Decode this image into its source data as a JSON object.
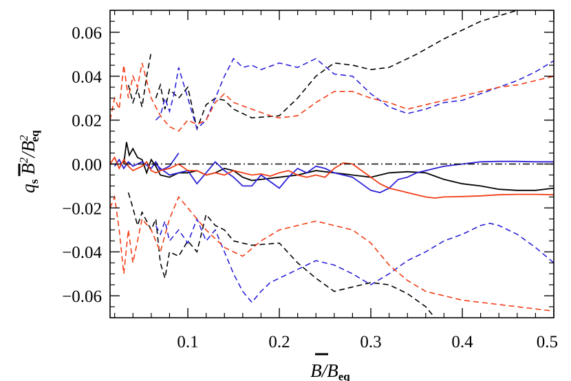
{
  "chart_data": {
    "type": "line",
    "xlabel": "B̄/B_eq",
    "ylabel": "q_s B̄²/B²_eq",
    "xlim": [
      0.015,
      0.5
    ],
    "ylim": [
      -0.07,
      0.07
    ],
    "x_ticks": [
      0.1,
      0.2,
      0.3,
      0.4,
      0.5
    ],
    "x_tick_labels": [
      "0.1",
      "0.2",
      "0.3",
      "0.4",
      "0.5"
    ],
    "y_ticks": [
      -0.06,
      -0.04,
      -0.02,
      0.0,
      0.02,
      0.04,
      0.06
    ],
    "y_tick_labels": [
      "−0.06",
      "−0.04",
      "−0.02",
      "0.00",
      "0.02",
      "0.04",
      "0.06"
    ],
    "grid": false,
    "reference_line": {
      "y": 0.0,
      "style": "dash-dot",
      "color": "#000000"
    },
    "series": [
      {
        "color": "#000000",
        "dash": false,
        "x": [
          0.03,
          0.033,
          0.036,
          0.04,
          0.045,
          0.05,
          0.055,
          0.06,
          0.065,
          0.07,
          0.08,
          0.09,
          0.1,
          0.11,
          0.12,
          0.13,
          0.14,
          0.15,
          0.16,
          0.17,
          0.18,
          0.2,
          0.22,
          0.24,
          0.26,
          0.28,
          0.3,
          0.32,
          0.34,
          0.36,
          0.38,
          0.4,
          0.42,
          0.44,
          0.46,
          0.48,
          0.5
        ],
        "y": [
          0.0,
          0.01,
          0.004,
          0.007,
          0.003,
          0.002,
          -0.004,
          0.002,
          -0.001,
          -0.005,
          -0.006,
          -0.004,
          -0.004,
          -0.003,
          -0.005,
          -0.004,
          -0.002,
          -0.003,
          -0.006,
          -0.0075,
          -0.007,
          -0.006,
          -0.005,
          -0.003,
          -0.004,
          -0.005,
          -0.006,
          -0.004,
          -0.0035,
          -0.004,
          -0.007,
          -0.009,
          -0.01,
          -0.0115,
          -0.012,
          -0.012,
          -0.011
        ]
      },
      {
        "color": "#2a1fd6",
        "dash": false,
        "x": [
          0.02,
          0.025,
          0.03,
          0.035,
          0.04,
          0.05,
          0.06,
          0.065,
          0.07,
          0.075,
          0.08,
          0.085,
          0.09
        ],
        "y": [
          -0.001,
          0.002,
          -0.002,
          0.001,
          -0.001,
          0.001,
          -0.002,
          0.001,
          -0.003,
          -0.002,
          -0.001,
          0.002,
          0.005
        ]
      },
      {
        "color": "#2a1fd6",
        "dash": false,
        "x": [
          0.065,
          0.07,
          0.08,
          0.09,
          0.1,
          0.11,
          0.12,
          0.13,
          0.14,
          0.15,
          0.16,
          0.17,
          0.18,
          0.19,
          0.2,
          0.21,
          0.22,
          0.23,
          0.24,
          0.25,
          0.26,
          0.27,
          0.28,
          0.29,
          0.3,
          0.31,
          0.32,
          0.33,
          0.34,
          0.35,
          0.36,
          0.37,
          0.38,
          0.39,
          0.4,
          0.41,
          0.42,
          0.44,
          0.46,
          0.48,
          0.5
        ],
        "y": [
          0.0,
          -0.002,
          -0.005,
          -0.004,
          -0.003,
          -0.009,
          -0.004,
          0.001,
          -0.003,
          -0.006,
          -0.01,
          -0.01,
          -0.005,
          -0.008,
          -0.011,
          -0.006,
          -0.002,
          -0.004,
          -0.001,
          -0.002,
          -0.004,
          -0.005,
          -0.006,
          -0.009,
          -0.012,
          -0.013,
          -0.011,
          -0.007,
          -0.006,
          -0.004,
          -0.003,
          -0.002,
          -0.001,
          -0.0005,
          0.0,
          0.0005,
          0.001,
          0.0012,
          0.0012,
          0.001,
          0.001
        ]
      },
      {
        "color": "#f23c14",
        "dash": false,
        "x": [
          0.015,
          0.02,
          0.025,
          0.03,
          0.035,
          0.04,
          0.05,
          0.055,
          0.06,
          0.065,
          0.07,
          0.08,
          0.09,
          0.1,
          0.11,
          0.12,
          0.13,
          0.14,
          0.15,
          0.16,
          0.17,
          0.18,
          0.19,
          0.2,
          0.21,
          0.22,
          0.23,
          0.24,
          0.25,
          0.26,
          0.27,
          0.28,
          0.29,
          0.3,
          0.31,
          0.32,
          0.33,
          0.34,
          0.35,
          0.36,
          0.37,
          0.38,
          0.4,
          0.42,
          0.44,
          0.46,
          0.48,
          0.5
        ],
        "y": [
          0.0,
          0.003,
          -0.002,
          0.002,
          -0.001,
          -0.003,
          -0.001,
          0.001,
          -0.003,
          -0.004,
          -0.003,
          -0.002,
          0.0,
          -0.003,
          -0.003,
          -0.005,
          -0.004,
          -0.005,
          -0.003,
          -0.004,
          -0.005,
          -0.0045,
          -0.0055,
          -0.004,
          -0.003,
          -0.005,
          -0.006,
          -0.005,
          -0.006,
          -0.002,
          0.0005,
          0.0,
          -0.003,
          -0.006,
          -0.009,
          -0.011,
          -0.012,
          -0.013,
          -0.014,
          -0.015,
          -0.0155,
          -0.015,
          -0.0148,
          -0.0145,
          -0.014,
          -0.0138,
          -0.0138,
          -0.014
        ]
      },
      {
        "color": "#000000",
        "dash": true,
        "x": [
          0.035,
          0.04,
          0.045,
          0.05,
          0.055,
          0.06
        ],
        "y": [
          0.036,
          0.028,
          0.034,
          0.026,
          0.04,
          0.051
        ]
      },
      {
        "color": "#000000",
        "dash": true,
        "x": [
          0.065,
          0.07,
          0.075,
          0.08,
          0.09,
          0.1,
          0.11,
          0.12,
          0.13,
          0.14,
          0.15,
          0.17,
          0.2,
          0.22,
          0.24,
          0.26,
          0.28,
          0.3,
          0.32,
          0.35,
          0.38,
          0.42,
          0.46,
          0.5
        ],
        "y": [
          0.03,
          0.036,
          0.025,
          0.034,
          0.03,
          0.035,
          0.016,
          0.027,
          0.03,
          0.029,
          0.025,
          0.021,
          0.022,
          0.03,
          0.04,
          0.046,
          0.045,
          0.043,
          0.044,
          0.05,
          0.057,
          0.065,
          0.07,
          0.072
        ]
      },
      {
        "color": "#2a1fd6",
        "dash": true,
        "x": [
          0.065,
          0.07,
          0.075,
          0.08,
          0.085,
          0.09,
          0.1,
          0.11,
          0.12,
          0.13,
          0.14,
          0.15,
          0.16,
          0.17,
          0.18,
          0.2,
          0.22,
          0.24,
          0.26,
          0.28,
          0.3,
          0.32,
          0.34,
          0.36,
          0.38,
          0.4,
          0.42,
          0.44,
          0.46,
          0.48,
          0.5
        ],
        "y": [
          0.02,
          0.022,
          0.03,
          0.024,
          0.032,
          0.044,
          0.03,
          0.016,
          0.02,
          0.03,
          0.04,
          0.048,
          0.044,
          0.045,
          0.043,
          0.046,
          0.044,
          0.048,
          0.041,
          0.04,
          0.032,
          0.026,
          0.023,
          0.025,
          0.028,
          0.029,
          0.032,
          0.035,
          0.038,
          0.042,
          0.047
        ]
      },
      {
        "color": "#f23c14",
        "dash": true,
        "x": [
          0.015,
          0.02,
          0.025,
          0.03,
          0.035,
          0.04,
          0.045,
          0.05,
          0.06,
          0.07,
          0.08,
          0.09,
          0.1,
          0.11,
          0.12,
          0.13,
          0.14,
          0.15,
          0.17,
          0.19,
          0.2,
          0.22,
          0.24,
          0.26,
          0.28,
          0.3,
          0.32,
          0.34,
          0.36,
          0.38,
          0.4,
          0.42,
          0.44,
          0.46,
          0.48,
          0.5
        ],
        "y": [
          0.02,
          0.03,
          0.025,
          0.045,
          0.03,
          0.04,
          0.035,
          0.046,
          0.03,
          0.022,
          0.017,
          0.015,
          0.02,
          0.018,
          0.02,
          0.028,
          0.032,
          0.028,
          0.025,
          0.022,
          0.021,
          0.022,
          0.028,
          0.033,
          0.033,
          0.03,
          0.028,
          0.025,
          0.027,
          0.029,
          0.031,
          0.033,
          0.035,
          0.036,
          0.038,
          0.04
        ]
      },
      {
        "color": "#000000",
        "dash": true,
        "x": [
          0.035,
          0.04,
          0.045,
          0.05,
          0.06,
          0.065,
          0.07,
          0.075,
          0.08,
          0.09,
          0.1,
          0.11,
          0.12,
          0.13,
          0.14,
          0.15,
          0.17,
          0.2,
          0.22,
          0.24,
          0.26,
          0.28,
          0.3,
          0.32,
          0.34,
          0.36,
          0.37
        ],
        "y": [
          -0.013,
          -0.02,
          -0.028,
          -0.022,
          -0.03,
          -0.025,
          -0.045,
          -0.052,
          -0.04,
          -0.042,
          -0.035,
          -0.04,
          -0.023,
          -0.028,
          -0.03,
          -0.035,
          -0.037,
          -0.036,
          -0.045,
          -0.052,
          -0.058,
          -0.056,
          -0.054,
          -0.055,
          -0.059,
          -0.065,
          -0.07
        ]
      },
      {
        "color": "#2a1fd6",
        "dash": true,
        "x": [
          0.065,
          0.07,
          0.075,
          0.08,
          0.09,
          0.1,
          0.11,
          0.12,
          0.13,
          0.14,
          0.15,
          0.16,
          0.17,
          0.18,
          0.19,
          0.2,
          0.22,
          0.24,
          0.26,
          0.28,
          0.3,
          0.32,
          0.34,
          0.36,
          0.38,
          0.4,
          0.42,
          0.43,
          0.44,
          0.46,
          0.48,
          0.5
        ],
        "y": [
          -0.028,
          -0.032,
          -0.026,
          -0.035,
          -0.03,
          -0.036,
          -0.025,
          -0.035,
          -0.03,
          -0.04,
          -0.05,
          -0.058,
          -0.063,
          -0.058,
          -0.054,
          -0.052,
          -0.048,
          -0.044,
          -0.046,
          -0.05,
          -0.055,
          -0.05,
          -0.044,
          -0.04,
          -0.035,
          -0.032,
          -0.028,
          -0.027,
          -0.028,
          -0.032,
          -0.038,
          -0.045
        ]
      },
      {
        "color": "#f23c14",
        "dash": true,
        "x": [
          0.015,
          0.02,
          0.025,
          0.03,
          0.035,
          0.04,
          0.045,
          0.05,
          0.06,
          0.07,
          0.08,
          0.09,
          0.1,
          0.12,
          0.14,
          0.16,
          0.18,
          0.2,
          0.22,
          0.24,
          0.26,
          0.28,
          0.3,
          0.32,
          0.34,
          0.36,
          0.38,
          0.4,
          0.42,
          0.44,
          0.46,
          0.48,
          0.5
        ],
        "y": [
          -0.02,
          -0.015,
          -0.03,
          -0.05,
          -0.03,
          -0.045,
          -0.035,
          -0.025,
          -0.03,
          -0.04,
          -0.025,
          -0.015,
          -0.02,
          -0.03,
          -0.038,
          -0.042,
          -0.035,
          -0.03,
          -0.028,
          -0.026,
          -0.028,
          -0.03,
          -0.036,
          -0.046,
          -0.053,
          -0.058,
          -0.06,
          -0.062,
          -0.063,
          -0.064,
          -0.065,
          -0.066,
          -0.067
        ]
      }
    ]
  }
}
